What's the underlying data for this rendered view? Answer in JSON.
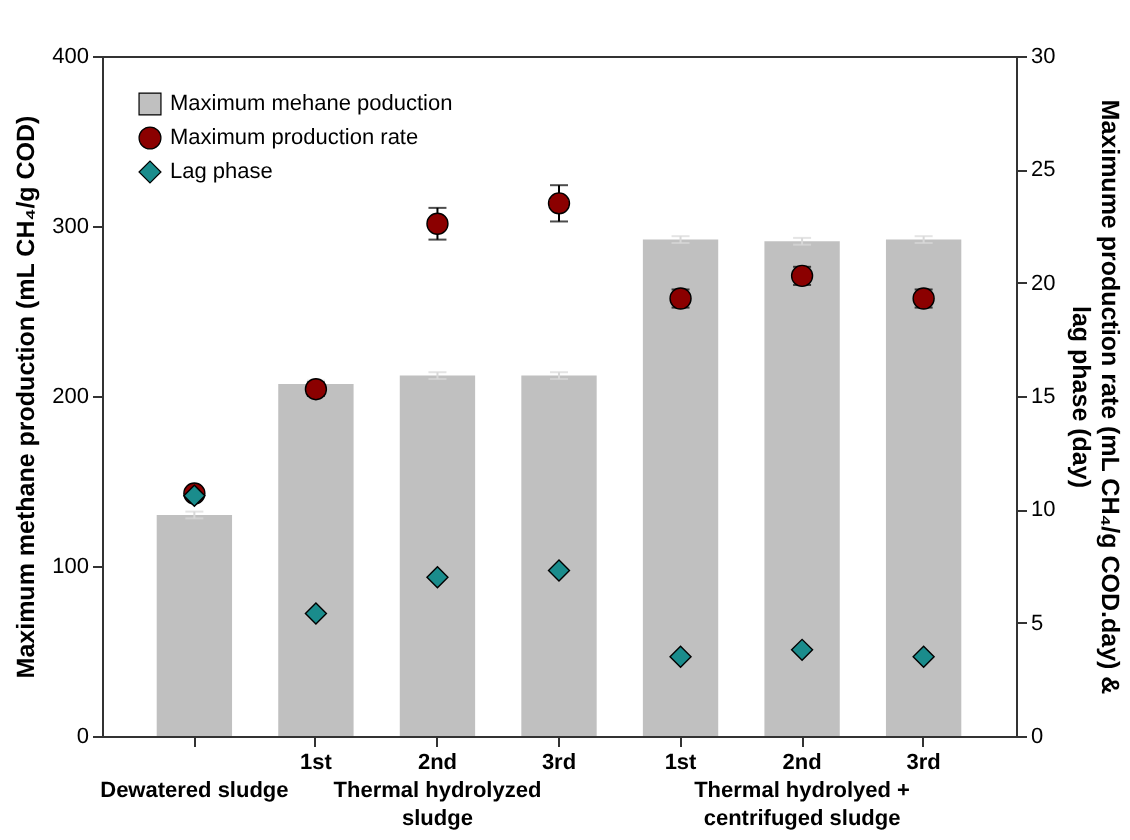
{
  "chart_data": {
    "type": "bar",
    "categories": [
      null,
      "1st",
      "2nd",
      "3rd",
      "1st",
      "2nd",
      "3rd"
    ],
    "ylabel": "Maximum methane production (mL CH₄/g COD)",
    "y2label": "Maximume production rate (mL CH₄/g COD.day) & lag phase (day)",
    "annotations": [
      "Dewatered sludge",
      "Thermal hydrolyzed sludge",
      "Thermal hydrolyed + centrifuged sludge"
    ],
    "series": [
      {
        "name": "Maximum mehane poduction",
        "color": "#c0c0c0",
        "values": [
          130,
          207,
          212,
          212,
          292,
          291,
          292
        ],
        "errors": [
          2,
          2,
          2,
          2,
          2,
          2,
          2
        ]
      },
      {
        "name": "Maximum production rate",
        "type": "scatter",
        "axis": "y2",
        "marker": "circle",
        "color": "#8b0000",
        "values": [
          10.7,
          15.3,
          22.6,
          23.5,
          19.3,
          20.3,
          19.3
        ],
        "errors": [
          null,
          0.3,
          0.7,
          0.8,
          0.4,
          0.4,
          0.4
        ]
      },
      {
        "name": "Lag phase",
        "type": "scatter",
        "axis": "y2",
        "marker": "diamond",
        "color": "#1a8c8c",
        "values": [
          10.6,
          5.4,
          7.0,
          7.3,
          3.5,
          3.8,
          3.5
        ]
      }
    ],
    "ylim": [
      0,
      400
    ],
    "yticks": [
      0,
      100,
      200,
      300,
      400
    ],
    "y2lim": [
      0,
      30
    ],
    "y2ticks": [
      0,
      5,
      10,
      15,
      20,
      25,
      30
    ],
    "legend": "top left",
    "grid": false
  }
}
